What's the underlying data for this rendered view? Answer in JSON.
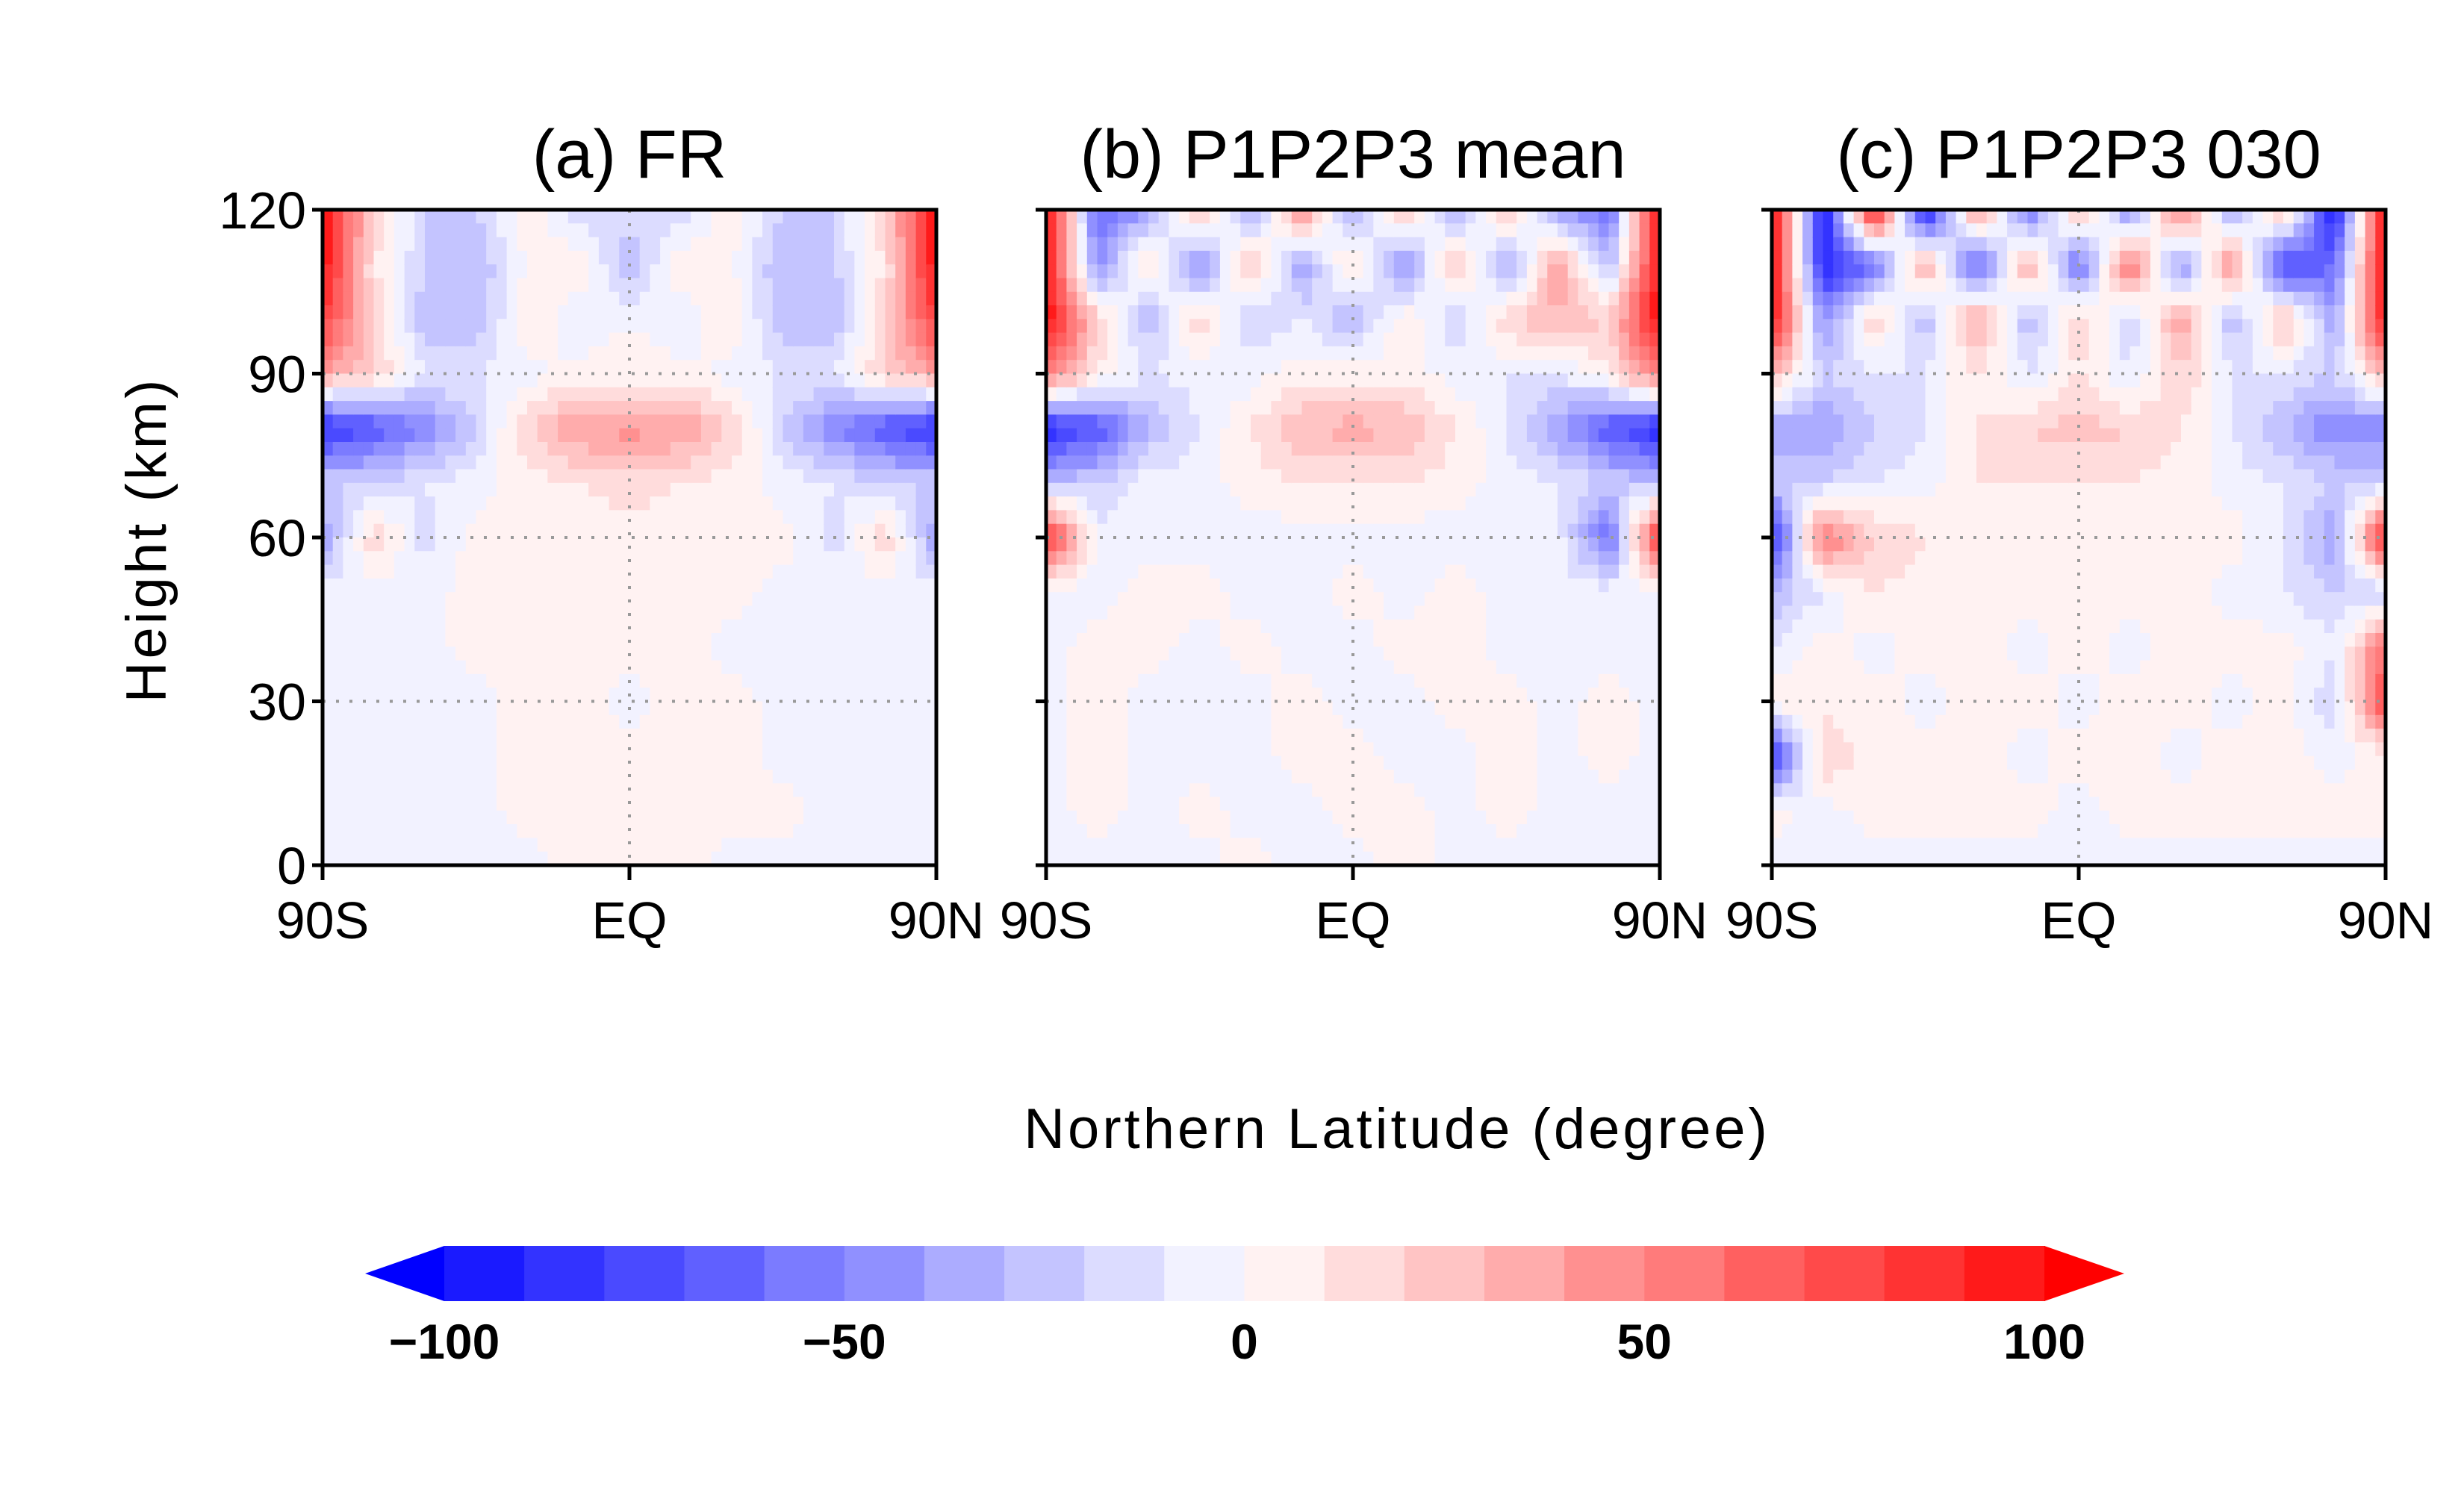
{
  "chart_data": {
    "type": "heatmap",
    "xlabel": "Northern Latitude (degree)",
    "ylabel": "Height (km)",
    "x_grid": [
      -90,
      -75,
      -60,
      -45,
      -30,
      -15,
      0,
      15,
      30,
      45,
      60,
      75,
      90
    ],
    "y_grid": [
      120,
      110,
      100,
      90,
      80,
      70,
      60,
      50,
      40,
      30,
      20,
      10,
      0
    ],
    "xlim": [
      -90,
      90
    ],
    "ylim": [
      0,
      120
    ],
    "x_ticks": [
      {
        "value": -90,
        "label": "90S"
      },
      {
        "value": 0,
        "label": "EQ"
      },
      {
        "value": 90,
        "label": "90N"
      }
    ],
    "y_ticks": [
      {
        "value": 0,
        "label": "0"
      },
      {
        "value": 30,
        "label": "30"
      },
      {
        "value": 60,
        "label": "60"
      },
      {
        "value": 90,
        "label": "90"
      },
      {
        "value": 120,
        "label": "120"
      }
    ],
    "grid": "dotted at 30, 60, 90 km and EQ",
    "colorbar": {
      "orientation": "horizontal",
      "placement": "bottom",
      "levels": [
        -100,
        -90,
        -80,
        -70,
        -60,
        -50,
        -40,
        -30,
        -20,
        -10,
        0,
        10,
        20,
        30,
        40,
        50,
        60,
        70,
        80,
        90,
        100
      ],
      "colors": [
        "#0000ff",
        "#1a1aff",
        "#3333ff",
        "#4a4aff",
        "#6060ff",
        "#7b7bff",
        "#9090ff",
        "#acacff",
        "#c4c4ff",
        "#dcdcff",
        "#f2f2ff",
        "#fff2f2",
        "#ffdcdc",
        "#ffc4c4",
        "#ffacac",
        "#ff9090",
        "#ff7b7b",
        "#ff6060",
        "#ff4a4a",
        "#ff3333",
        "#ff1a1a",
        "#ff0000"
      ],
      "tick_labels": [
        {
          "value": -100,
          "label": "−100"
        },
        {
          "value": -50,
          "label": "−50"
        },
        {
          "value": 0,
          "label": "0"
        },
        {
          "value": 50,
          "label": "50"
        },
        {
          "value": 100,
          "label": "100"
        }
      ]
    },
    "panels": [
      {
        "title": "(a) FR",
        "values": [
          [
            100,
            20,
            -20,
            -20,
            10,
            -20,
            -10,
            -20,
            10,
            -20,
            -20,
            20,
            100
          ],
          [
            100,
            10,
            -20,
            -30,
            0,
            10,
            -30,
            10,
            0,
            -30,
            -20,
            10,
            100
          ],
          [
            80,
            20,
            -30,
            -30,
            10,
            -10,
            0,
            -10,
            10,
            -30,
            -30,
            20,
            80
          ],
          [
            40,
            20,
            -10,
            -10,
            -5,
            5,
            5,
            5,
            -5,
            -10,
            -10,
            20,
            40
          ],
          [
            -90,
            -70,
            -50,
            -20,
            20,
            40,
            45,
            40,
            20,
            -20,
            -50,
            -70,
            -90
          ],
          [
            -20,
            -20,
            -10,
            -5,
            5,
            10,
            15,
            10,
            5,
            -5,
            -10,
            -20,
            -20
          ],
          [
            -40,
            20,
            -15,
            5,
            5,
            5,
            5,
            5,
            5,
            5,
            -15,
            20,
            -40
          ],
          [
            -5,
            -5,
            -5,
            5,
            5,
            5,
            5,
            5,
            5,
            -5,
            -5,
            -5,
            -5
          ],
          [
            -5,
            -5,
            -5,
            5,
            5,
            5,
            5,
            5,
            -5,
            -5,
            -5,
            -5,
            -5
          ],
          [
            -5,
            -5,
            -5,
            -5,
            5,
            5,
            -5,
            5,
            5,
            -5,
            -5,
            -5,
            -5
          ],
          [
            -5,
            -5,
            -5,
            -5,
            5,
            5,
            5,
            5,
            5,
            -5,
            -5,
            -5,
            -5
          ],
          [
            -5,
            -5,
            -5,
            -5,
            5,
            5,
            5,
            5,
            5,
            5,
            -5,
            -5,
            -5
          ],
          [
            -5,
            -5,
            -5,
            -5,
            -5,
            5,
            5,
            5,
            -5,
            -5,
            -5,
            -5,
            -5
          ]
        ]
      },
      {
        "title": "(b) P1P2P3 mean",
        "values": [
          [
            100,
            -60,
            -40,
            30,
            -40,
            50,
            -40,
            30,
            -40,
            30,
            -40,
            -60,
            100
          ],
          [
            100,
            -50,
            20,
            -50,
            30,
            -40,
            20,
            -50,
            30,
            -40,
            40,
            -30,
            100
          ],
          [
            100,
            20,
            -30,
            20,
            -20,
            -10,
            -30,
            10,
            -20,
            20,
            30,
            20,
            100
          ],
          [
            60,
            10,
            -10,
            -5,
            -5,
            5,
            5,
            5,
            -5,
            -10,
            -10,
            10,
            60
          ],
          [
            -90,
            -70,
            -30,
            -10,
            10,
            30,
            35,
            30,
            10,
            -10,
            -40,
            -70,
            -90
          ],
          [
            -30,
            -20,
            -5,
            -5,
            5,
            10,
            10,
            10,
            5,
            -5,
            -10,
            -20,
            -30
          ],
          [
            90,
            -5,
            -5,
            -5,
            -5,
            -5,
            -5,
            -5,
            -5,
            -5,
            -5,
            -60,
            90
          ],
          [
            -5,
            -5,
            5,
            5,
            -5,
            -5,
            5,
            -5,
            5,
            -5,
            -5,
            -5,
            -5
          ],
          [
            -5,
            5,
            5,
            -5,
            5,
            -5,
            -5,
            5,
            5,
            -5,
            -5,
            -5,
            -5
          ],
          [
            -5,
            5,
            -5,
            -5,
            -5,
            5,
            -5,
            -5,
            5,
            5,
            -5,
            5,
            -5
          ],
          [
            -5,
            5,
            -5,
            -5,
            -5,
            5,
            5,
            -5,
            -5,
            5,
            -5,
            5,
            -5
          ],
          [
            -5,
            5,
            -5,
            5,
            -5,
            -5,
            5,
            5,
            -5,
            5,
            -5,
            -5,
            -5
          ],
          [
            -5,
            -5,
            -5,
            -5,
            5,
            -5,
            -5,
            5,
            -5,
            -5,
            -5,
            -5,
            -5
          ]
        ]
      },
      {
        "title": "(c) P1P2P3 030",
        "values": [
          [
            100,
            -100,
            100,
            -100,
            50,
            -60,
            30,
            -50,
            60,
            -40,
            30,
            -100,
            100
          ],
          [
            100,
            -90,
            -60,
            40,
            -70,
            40,
            -60,
            60,
            -50,
            50,
            -80,
            -60,
            100
          ],
          [
            100,
            -50,
            20,
            -30,
            40,
            -30,
            20,
            -20,
            40,
            -30,
            30,
            -40,
            100
          ],
          [
            30,
            -20,
            -10,
            -10,
            10,
            -10,
            10,
            -10,
            20,
            -10,
            -10,
            -20,
            30
          ],
          [
            -40,
            -40,
            -20,
            -10,
            10,
            20,
            25,
            20,
            10,
            -10,
            -30,
            -50,
            -50
          ],
          [
            -20,
            -20,
            -10,
            -5,
            10,
            10,
            10,
            10,
            5,
            -5,
            -10,
            -20,
            -20
          ],
          [
            -90,
            60,
            20,
            10,
            5,
            5,
            5,
            5,
            5,
            5,
            -10,
            -40,
            90
          ],
          [
            -30,
            -10,
            10,
            5,
            5,
            5,
            5,
            5,
            5,
            -5,
            -10,
            -20,
            -20
          ],
          [
            -10,
            5,
            -5,
            5,
            5,
            -5,
            5,
            -5,
            5,
            5,
            5,
            -10,
            60
          ],
          [
            10,
            5,
            5,
            -5,
            5,
            5,
            -5,
            5,
            5,
            -5,
            5,
            -20,
            80
          ],
          [
            -80,
            20,
            5,
            5,
            5,
            -5,
            5,
            5,
            -5,
            5,
            5,
            -5,
            5
          ],
          [
            5,
            -5,
            5,
            5,
            5,
            5,
            -5,
            5,
            5,
            5,
            5,
            5,
            5
          ],
          [
            -5,
            -5,
            -5,
            -5,
            -5,
            -5,
            -5,
            -5,
            -5,
            -5,
            -5,
            -5,
            -5
          ]
        ]
      }
    ]
  }
}
